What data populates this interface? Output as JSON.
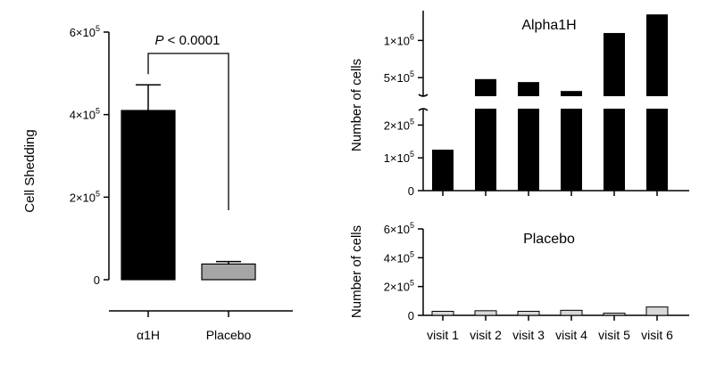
{
  "chart_data": [
    {
      "type": "bar",
      "ylabel": "Cell Shedding",
      "categories": [
        "α1H",
        "Placebo"
      ],
      "values": [
        410000,
        38000
      ],
      "errors": [
        62000,
        6000
      ],
      "ylim": [
        0,
        600000
      ],
      "yticks": [
        {
          "value": 0,
          "mant": "0",
          "exp": ""
        },
        {
          "value": 200000,
          "mant": "2×10",
          "exp": "5"
        },
        {
          "value": 400000,
          "mant": "4×10",
          "exp": "5"
        },
        {
          "value": 600000,
          "mant": "6×10",
          "exp": "5"
        }
      ],
      "annotation": {
        "p": "P",
        "rest": " < 0.0001"
      },
      "colors": [
        "#000000",
        "#a6a6a6"
      ]
    },
    {
      "type": "bar",
      "title": "Alpha1H",
      "ylabel": "Number of cells",
      "categories": [
        "visit 1",
        "visit 2",
        "visit 3",
        "visit 4",
        "visit 5",
        "visit 6"
      ],
      "values": [
        125000,
        480000,
        440000,
        320000,
        1100000,
        1350000
      ],
      "axis_break": {
        "lower": [
          0,
          250000
        ],
        "upper": [
          250000,
          1400000
        ]
      },
      "yticks_lower": [
        {
          "value": 0,
          "mant": "0",
          "exp": ""
        },
        {
          "value": 100000,
          "mant": "1×10",
          "exp": "5"
        },
        {
          "value": 200000,
          "mant": "2×10",
          "exp": "5"
        }
      ],
      "yticks_upper": [
        {
          "value": 500000,
          "mant": "5×10",
          "exp": "5"
        },
        {
          "value": 1000000,
          "mant": "1×10",
          "exp": "6"
        }
      ],
      "color": "#000000"
    },
    {
      "type": "bar",
      "title": "Placebo",
      "ylabel": "Number of cells",
      "categories": [
        "visit 1",
        "visit 2",
        "visit 3",
        "visit 4",
        "visit 5",
        "visit 6"
      ],
      "values": [
        28000,
        32000,
        28000,
        35000,
        15000,
        58000
      ],
      "ylim": [
        0,
        600000
      ],
      "yticks": [
        {
          "value": 0,
          "mant": "0",
          "exp": ""
        },
        {
          "value": 200000,
          "mant": "2×10",
          "exp": "5"
        },
        {
          "value": 400000,
          "mant": "4×10",
          "exp": "5"
        },
        {
          "value": 600000,
          "mant": "6×10",
          "exp": "5"
        }
      ],
      "color": "#d9d9d9"
    }
  ]
}
